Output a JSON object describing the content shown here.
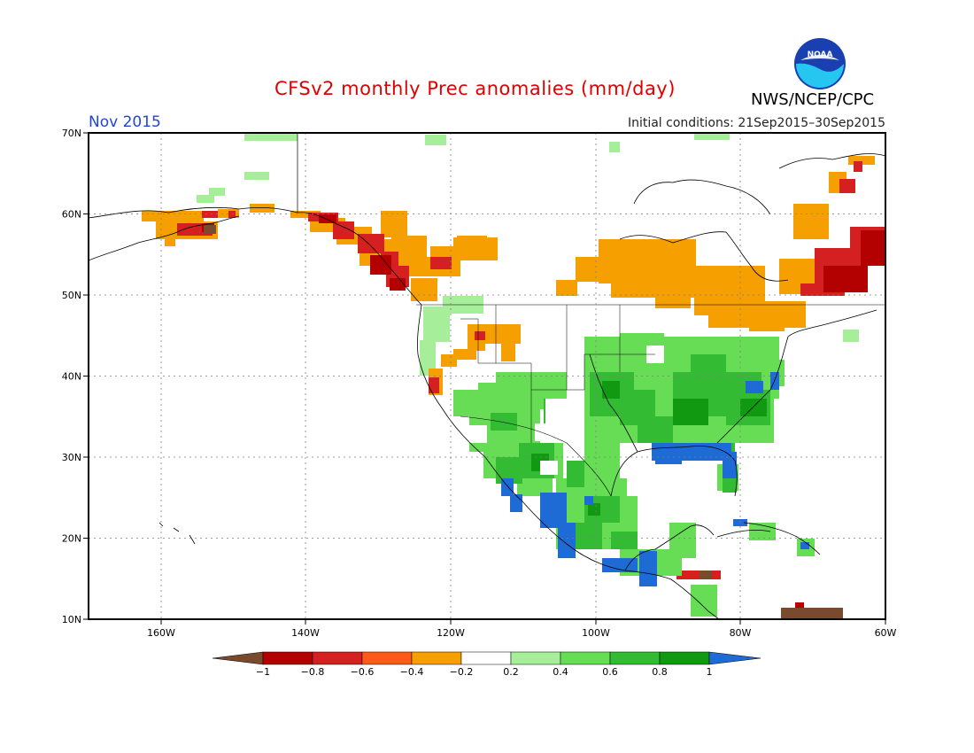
{
  "header": {
    "title": "CFSv2 monthly Prec anomalies (mm/day)",
    "period": "Nov 2015",
    "initial_conditions": "Initial conditions: 21Sep2015–30Sep2015",
    "credit": "NWS/NCEP/CPC",
    "logo_text": "NOAA"
  },
  "map": {
    "lat_labels": [
      "70N",
      "60N",
      "50N",
      "40N",
      "30N",
      "20N",
      "10N"
    ],
    "lon_labels": [
      "160W",
      "140W",
      "120W",
      "100W",
      "80W",
      "60W"
    ]
  },
  "legend": {
    "tick_labels": [
      "−1",
      "−0.8",
      "−0.6",
      "−0.4",
      "−0.2",
      "0.2",
      "0.4",
      "0.6",
      "0.8",
      "1"
    ],
    "colors": [
      "#7a4a2e",
      "#b30000",
      "#d42020",
      "#ff5a1a",
      "#f5a000",
      "#ffffff",
      "#a6ee99",
      "#66dd55",
      "#33bb33",
      "#119911",
      "#1e6bd6"
    ]
  }
}
